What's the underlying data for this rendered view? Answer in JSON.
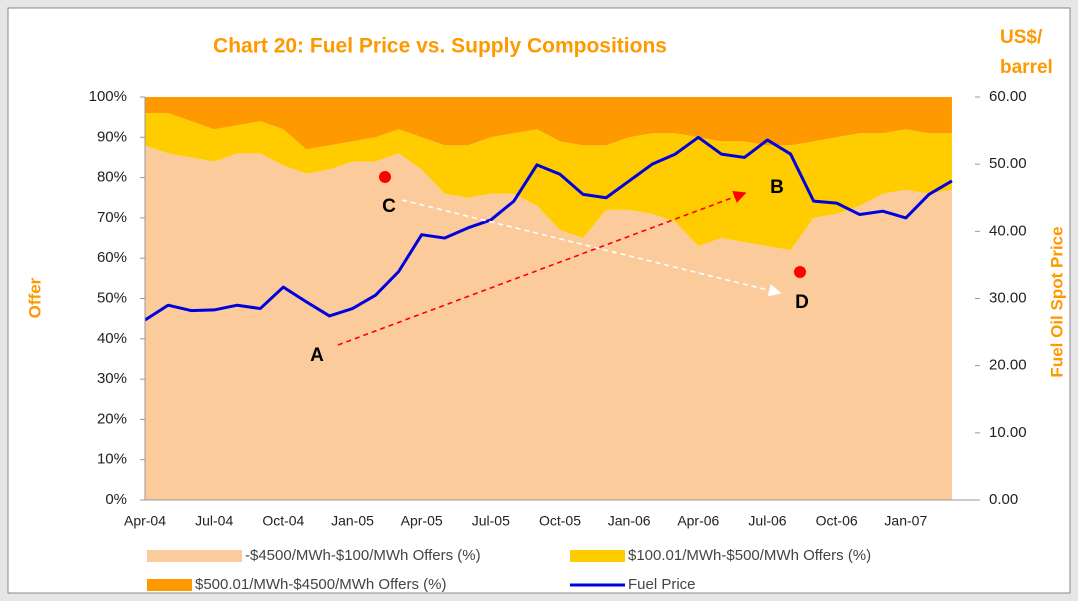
{
  "chart_data": {
    "type": "stacked_area_line",
    "title": "Chart 20: Fuel Price vs. Supply Compositions",
    "ylabel": "Offer",
    "y2label": "Fuel Oil Spot Price",
    "y2unit": [
      "US$/",
      "barrel"
    ],
    "categories": [
      "Apr-04",
      null,
      null,
      "Jul-04",
      null,
      null,
      "Oct-04",
      null,
      null,
      "Jan-05",
      null,
      null,
      "Apr-05",
      null,
      null,
      "Jul-05",
      null,
      null,
      "Oct-05",
      null,
      null,
      "Jan-06",
      null,
      null,
      "Apr-06",
      null,
      null,
      "Jul-06",
      null,
      null,
      "Oct-06",
      null,
      null,
      "Jan-07",
      null,
      null
    ],
    "ylim": [
      0,
      100
    ],
    "yticks": [
      {
        "value": 0,
        "label": "0%"
      },
      {
        "value": 10,
        "label": "10%"
      },
      {
        "value": 20,
        "label": "20%"
      },
      {
        "value": 30,
        "label": "30%"
      },
      {
        "value": 40,
        "label": "40%"
      },
      {
        "value": 50,
        "label": "50%"
      },
      {
        "value": 60,
        "label": "60%"
      },
      {
        "value": 70,
        "label": "70%"
      },
      {
        "value": 80,
        "label": "80%"
      },
      {
        "value": 90,
        "label": "90%"
      },
      {
        "value": 100,
        "label": "100%"
      }
    ],
    "y2lim": [
      0,
      60
    ],
    "y2ticks": [
      {
        "value": 0,
        "label": "0.00"
      },
      {
        "value": 10,
        "label": "10.00"
      },
      {
        "value": 20,
        "label": "20.00"
      },
      {
        "value": 30,
        "label": "30.00"
      },
      {
        "value": 40,
        "label": "40.00"
      },
      {
        "value": 50,
        "label": "50.00"
      },
      {
        "value": 60,
        "label": "60.00"
      }
    ],
    "series": [
      {
        "name": "-$4500/MWh-$100/MWh Offers (%)",
        "color": "#fbcb9c",
        "kind": "area",
        "values": [
          88,
          86,
          85,
          84,
          86,
          86,
          83,
          81,
          82,
          84,
          84,
          86,
          82,
          76,
          75,
          76,
          76,
          73,
          67,
          65,
          72,
          72,
          71,
          69,
          63,
          65,
          64,
          63,
          62,
          70,
          71,
          73,
          76,
          77,
          76,
          77
        ]
      },
      {
        "name": "$100.01/MWh-$500/MWh Offers (%)",
        "color": "#ffcc00",
        "kind": "area",
        "values": [
          8,
          10,
          9,
          8,
          7,
          8,
          9,
          6,
          6,
          5,
          6,
          6,
          8,
          12,
          13,
          14,
          15,
          19,
          22,
          23,
          16,
          18,
          20,
          22,
          27,
          24,
          25,
          25,
          26,
          19,
          19,
          18,
          15,
          15,
          15,
          14
        ]
      },
      {
        "name": "$500.01/MWh-$4500/MWh Offers (%)",
        "color": "#ff9900",
        "kind": "area",
        "values": [
          4,
          4,
          6,
          8,
          7,
          6,
          8,
          13,
          12,
          11,
          10,
          8,
          10,
          12,
          12,
          10,
          9,
          8,
          11,
          12,
          12,
          10,
          9,
          9,
          10,
          11,
          11,
          12,
          12,
          11,
          10,
          9,
          9,
          8,
          9,
          9
        ]
      },
      {
        "name": "Fuel Price",
        "color": "#0000dd",
        "kind": "line",
        "axis": "y2",
        "values": [
          26.8,
          29,
          28.2,
          28.3,
          29,
          28.5,
          31.7,
          29.5,
          27.4,
          28.5,
          30.5,
          34,
          39.5,
          39,
          40.5,
          41.7,
          44.5,
          49.9,
          48.5,
          45.5,
          45,
          47.5,
          50,
          51.5,
          54,
          51.5,
          51,
          53.6,
          51.5,
          44.5,
          44.2,
          42.5,
          43,
          42,
          45.5,
          47.5
        ]
      }
    ],
    "annotations": [
      "A",
      "B",
      "C",
      "D"
    ]
  }
}
